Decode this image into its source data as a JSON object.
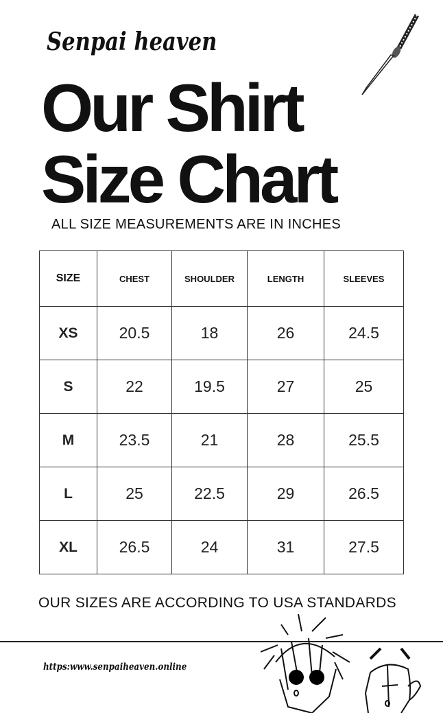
{
  "brand": "Senpai heaven",
  "title_line1": "Our Shirt",
  "title_line2": "Size Chart",
  "subtitle": "ALL SIZE MEASUREMENTS ARE IN INCHES",
  "footer_note": "OUR SIZES ARE ACCORDING TO USA STANDARDS",
  "url": "https:www.senpaiheaven.online",
  "icons": [
    "katana-sword-icon",
    "anime-character-sunglasses-icon",
    "anime-character-face-icon"
  ],
  "chart_data": {
    "type": "table",
    "columns": [
      "SIZE",
      "CHEST",
      "SHOULDER",
      "LENGTH",
      "SLEEVES"
    ],
    "rows": [
      [
        "XS",
        "20.5",
        "18",
        "26",
        "24.5"
      ],
      [
        "S",
        "22",
        "19.5",
        "27",
        "25"
      ],
      [
        "M",
        "23.5",
        "21",
        "28",
        "25.5"
      ],
      [
        "L",
        "25",
        "22.5",
        "29",
        "26.5"
      ],
      [
        "XL",
        "26.5",
        "24",
        "31",
        "27.5"
      ]
    ]
  }
}
